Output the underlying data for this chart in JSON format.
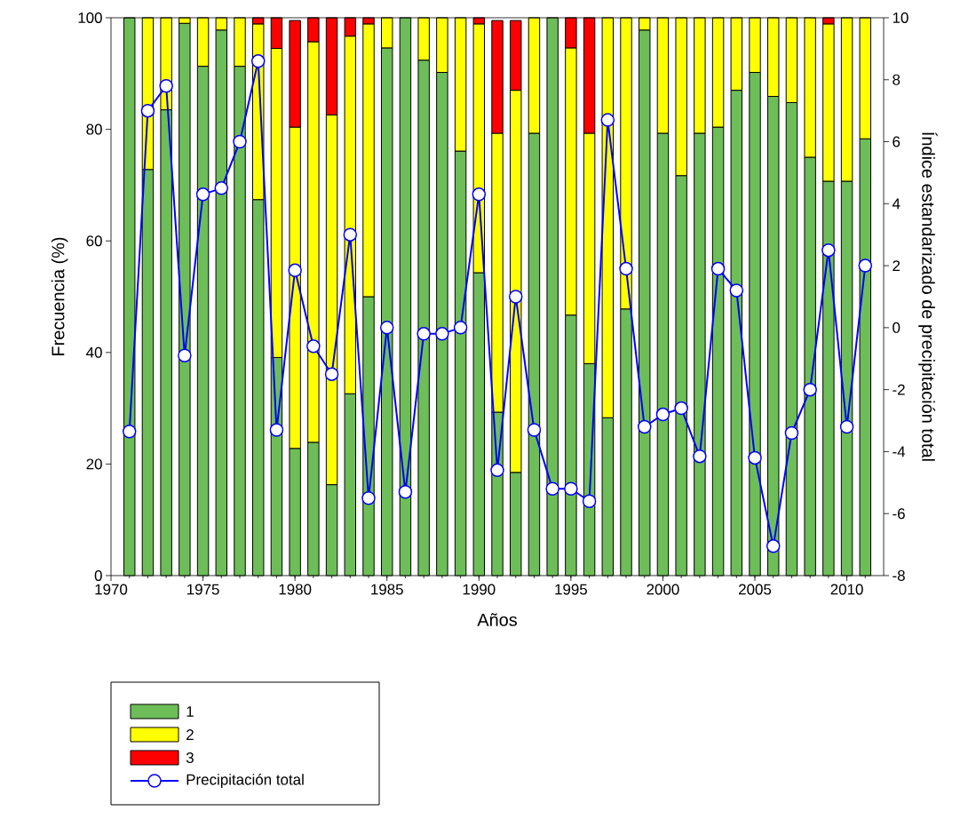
{
  "chart_data": {
    "type": "bar",
    "stacked": true,
    "xlabel": "Años",
    "ylabel": "Frecuencia (%)",
    "y2label": "Índice estandarizado de precipitación total",
    "x": [
      1971,
      1972,
      1973,
      1974,
      1975,
      1976,
      1977,
      1978,
      1979,
      1980,
      1981,
      1982,
      1983,
      1984,
      1985,
      1986,
      1987,
      1988,
      1989,
      1990,
      1991,
      1992,
      1993,
      1994,
      1995,
      1996,
      1997,
      1998,
      1999,
      2000,
      2001,
      2002,
      2003,
      2004,
      2005,
      2006,
      2007,
      2008,
      2009,
      2010,
      2011
    ],
    "xlim": [
      1970,
      2012
    ],
    "xticks": [
      1970,
      1975,
      1980,
      1985,
      1990,
      1995,
      2000,
      2005,
      2010
    ],
    "ylim": [
      0,
      100
    ],
    "yticks": [
      0,
      20,
      40,
      60,
      80,
      100
    ],
    "y2lim": [
      -8,
      10
    ],
    "y2ticks": [
      -8,
      -6,
      -4,
      -2,
      0,
      2,
      4,
      6,
      8,
      10
    ],
    "legend": "bottom left",
    "series": [
      {
        "name": "1",
        "color": "#6dbe58",
        "values": [
          100,
          72.8,
          83.5,
          99,
          91.3,
          97.8,
          91.3,
          67.4,
          39.1,
          22.8,
          23.9,
          16.3,
          32.6,
          50,
          94.6,
          100,
          92.4,
          90.2,
          76.1,
          54.3,
          29.3,
          18.5,
          79.3,
          100,
          46.7,
          38,
          28.3,
          47.8,
          97.8,
          79.3,
          71.7,
          79.3,
          80.4,
          87,
          90.2,
          85.9,
          84.8,
          75,
          70.7,
          70.7,
          78.3
        ]
      },
      {
        "name": "2",
        "color": "#ffff00",
        "values": [
          null,
          27.2,
          16.5,
          1,
          8.7,
          2.2,
          8.7,
          31.5,
          55.4,
          57.6,
          71.8,
          66.3,
          64.1,
          48.9,
          5.4,
          null,
          7.6,
          9.8,
          23.9,
          44.6,
          50,
          68.5,
          20.7,
          null,
          47.9,
          41.3,
          71.7,
          52.2,
          2.2,
          20.7,
          28.3,
          20.7,
          19.6,
          13,
          9.8,
          14.1,
          15.2,
          25,
          28.2,
          29.3,
          21.7
        ]
      },
      {
        "name": "3",
        "color": "#ff0000",
        "values": [
          null,
          null,
          null,
          null,
          null,
          null,
          null,
          1.1,
          5.5,
          19.1,
          4.3,
          17.4,
          3.3,
          1.1,
          null,
          null,
          null,
          null,
          null,
          1.1,
          20.2,
          12.5,
          null,
          null,
          5.4,
          20.7,
          null,
          null,
          null,
          null,
          null,
          null,
          null,
          null,
          null,
          null,
          null,
          null,
          1.1,
          null,
          null
        ]
      },
      {
        "name": "Precipitación total",
        "type": "line",
        "axis": "y2",
        "marker": "circle",
        "color": "#0000ff",
        "values": [
          -3.35,
          7.0,
          7.8,
          -0.9,
          4.3,
          4.5,
          6.0,
          8.6,
          -3.3,
          1.85,
          -0.6,
          -1.5,
          3.0,
          -5.5,
          0.0,
          -5.3,
          -0.2,
          -0.2,
          0.0,
          4.3,
          -4.6,
          1.0,
          -3.3,
          -5.2,
          -5.2,
          -5.6,
          6.7,
          1.9,
          -3.2,
          -2.8,
          -2.6,
          -4.15,
          1.9,
          1.2,
          -4.2,
          -7.05,
          -3.4,
          -2.0,
          2.5,
          -3.2,
          2.0
        ]
      }
    ]
  }
}
